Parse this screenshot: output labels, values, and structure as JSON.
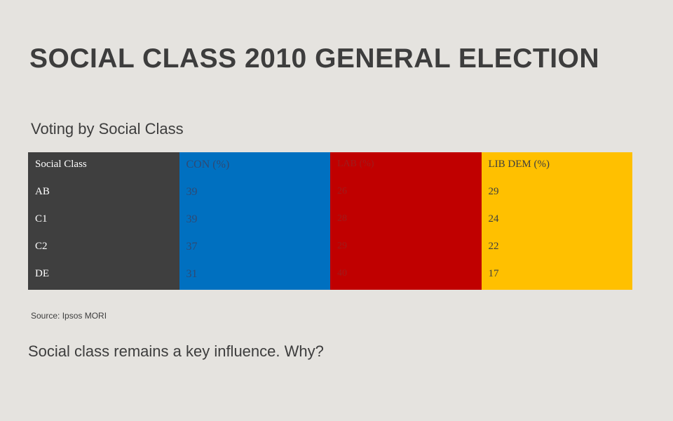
{
  "slide": {
    "title": "SOCIAL CLASS 2010 GENERAL ELECTION",
    "subtitle": "Voting by Social Class",
    "source": "Source: Ipsos MORI",
    "note": "Social class remains a key influence.  Why?"
  },
  "table": {
    "headers": [
      "Social Class",
      "CON (%)",
      "LAB (%)",
      "LIB DEM (%)"
    ],
    "rows": [
      [
        "AB",
        "39",
        "26",
        "29"
      ],
      [
        "C1",
        "39",
        "28",
        "24"
      ],
      [
        "C2",
        "37",
        "29",
        "22"
      ],
      [
        "DE",
        "31",
        "40",
        "17"
      ]
    ],
    "colors": {
      "label": "#3f3f3f",
      "con": "#0070c0",
      "lab": "#c00000",
      "libdem": "#ffc000"
    }
  }
}
